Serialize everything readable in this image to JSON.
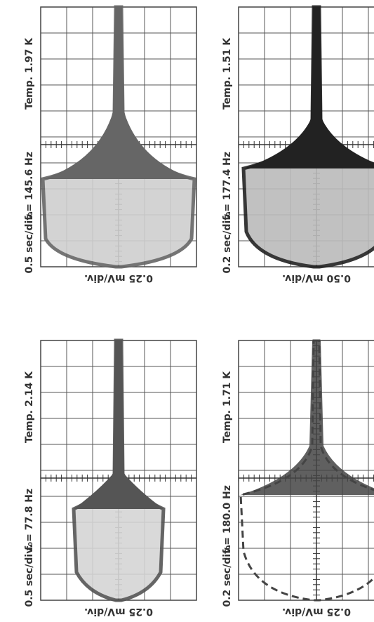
{
  "panels": [
    {
      "temperature": "Temp. 1.97 K",
      "frequency": "f₀= 145.6 Hz",
      "time_scale": "0.5 sec/div.",
      "voltage_scale": "0.25 mV/div."
    },
    {
      "temperature": "Temp. 1.51 K",
      "frequency": "f₀= 177.4 Hz",
      "time_scale": "0.2 sec/div.",
      "voltage_scale": "0.50 mV/div."
    },
    {
      "temperature": "Temp. 2.14 K",
      "frequency": "f₀= 77.8 Hz",
      "time_scale": "0.5 sec/div.",
      "voltage_scale": "0.25 mV/div."
    },
    {
      "temperature": "Temp. 1.71 K",
      "frequency": "f₀= 180.0 Hz",
      "time_scale": "0.2 sec/div.",
      "voltage_scale": "0.25 mV/div."
    }
  ]
}
